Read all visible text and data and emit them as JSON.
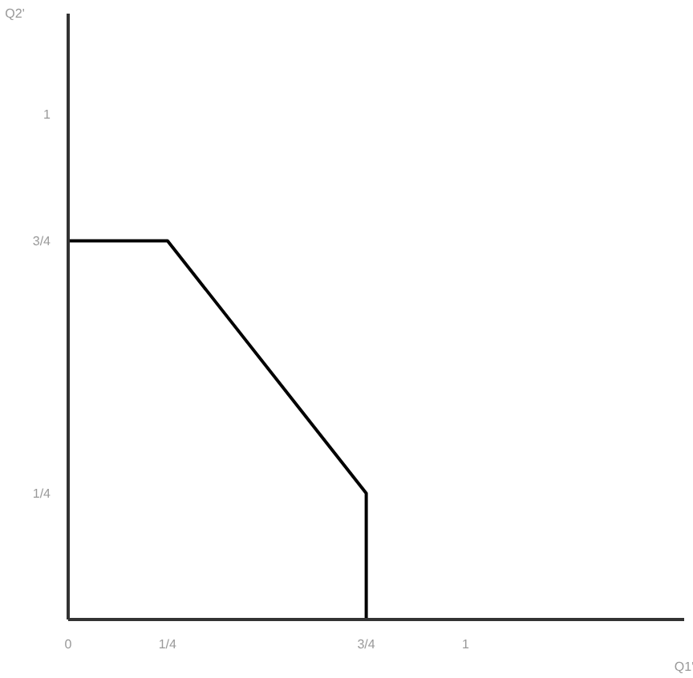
{
  "chart_data": {
    "type": "line",
    "xlabel": "Q1'",
    "ylabel": "Q2'",
    "x": [
      0,
      0.25,
      0.75,
      0.75
    ],
    "series": [
      {
        "color": "#000000",
        "values": [
          0.75,
          0.75,
          0.25,
          0
        ]
      }
    ],
    "xlim": [
      0,
      1.55
    ],
    "ylim": [
      0,
      1.2
    ],
    "xticks": [
      {
        "value": 0,
        "label": "0"
      },
      {
        "value": 0.25,
        "label": "1/4"
      },
      {
        "value": 0.75,
        "label": "3/4"
      },
      1
    ],
    "yticks": [
      {
        "value": 0.25,
        "label": "1/4"
      },
      {
        "value": 0.75,
        "label": "3/4"
      },
      1
    ],
    "grid": false,
    "marker": "none",
    "line_style": "solid"
  }
}
